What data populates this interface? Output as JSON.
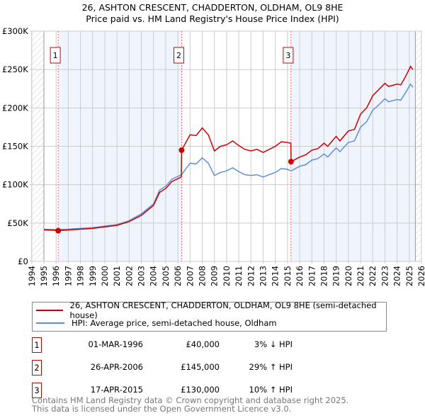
{
  "chart_data": {
    "type": "line",
    "title": "26, ASHTON CRESCENT, CHADDERTON, OLDHAM, OL9 8HE",
    "subtitle": "Price paid vs. HM Land Registry's House Price Index (HPI)",
    "xlim": [
      1994,
      2026
    ],
    "ylim": [
      0,
      300000
    ],
    "x_ticks": [
      "1994",
      "1995",
      "1996",
      "1997",
      "1998",
      "1999",
      "2000",
      "2001",
      "2002",
      "2003",
      "2004",
      "2005",
      "2006",
      "2007",
      "2008",
      "2009",
      "2010",
      "2011",
      "2012",
      "2013",
      "2014",
      "2015",
      "2016",
      "2017",
      "2018",
      "2019",
      "2020",
      "2021",
      "2022",
      "2023",
      "2024",
      "2025",
      "2026"
    ],
    "y_ticks": [
      {
        "v": 0,
        "label": "£0"
      },
      {
        "v": 50000,
        "label": "£50K"
      },
      {
        "v": 100000,
        "label": "£100K"
      },
      {
        "v": 150000,
        "label": "£150K"
      },
      {
        "v": 200000,
        "label": "£200K"
      },
      {
        "v": 250000,
        "label": "£250K"
      },
      {
        "v": 300000,
        "label": "£300K"
      }
    ],
    "grid": true,
    "series": [
      {
        "name": "26, ASHTON CRESCENT, CHADDERTON, OLDHAM, OL9 8HE (semi-detached house)",
        "color": "#cc0000",
        "x": [
          1995,
          1996,
          1996.17,
          1997,
          1998,
          1999,
          2000,
          2001,
          2002,
          2003,
          2004,
          2004.5,
          2005,
          2005.5,
          2006.28,
          2006.31,
          2007,
          2007.5,
          2008,
          2008.5,
          2009,
          2009.5,
          2010,
          2010.5,
          2011,
          2011.5,
          2012,
          2012.5,
          2013,
          2013.5,
          2014,
          2014.5,
          2015,
          2015.27,
          2015.3,
          2016,
          2016.5,
          2017,
          2017.5,
          2018,
          2018.3,
          2019,
          2019.3,
          2020,
          2020.5,
          2021,
          2021.5,
          2022,
          2022.5,
          2023,
          2023.3,
          2024,
          2024.3,
          2024.7,
          2025.1,
          2025.3
        ],
        "y": [
          41000,
          40500,
          40000,
          41000,
          42000,
          43000,
          45000,
          47000,
          52000,
          60000,
          73000,
          90000,
          95000,
          104000,
          110000,
          145000,
          165000,
          164000,
          174000,
          165000,
          144000,
          150000,
          152000,
          157000,
          151000,
          146000,
          144000,
          146000,
          142000,
          146000,
          150000,
          156000,
          155000,
          154000,
          130000,
          136000,
          139000,
          145000,
          147000,
          154000,
          150000,
          163000,
          157000,
          170000,
          172000,
          192000,
          200000,
          216000,
          224000,
          232000,
          228000,
          231000,
          230000,
          241000,
          254000,
          250000
        ]
      },
      {
        "name": "HPI: Average price, semi-detached house, Oldham",
        "color": "#5b8fd6",
        "x": [
          1995,
          1996,
          1997,
          1998,
          1999,
          2000,
          2001,
          2002,
          2003,
          2004,
          2004.5,
          2005,
          2005.5,
          2006.3,
          2007,
          2007.5,
          2008,
          2008.5,
          2009,
          2009.5,
          2010,
          2010.5,
          2011,
          2011.5,
          2012,
          2012.5,
          2013,
          2013.5,
          2014,
          2014.5,
          2015,
          2015.3,
          2016,
          2016.5,
          2017,
          2017.5,
          2018,
          2018.3,
          2019,
          2019.3,
          2020,
          2020.5,
          2021,
          2021.5,
          2022,
          2022.5,
          2023,
          2023.3,
          2024,
          2024.3,
          2024.7,
          2025.1,
          2025.3
        ],
        "y": [
          42000,
          41500,
          42000,
          43000,
          44000,
          46000,
          48000,
          53000,
          62000,
          75000,
          93000,
          98000,
          107000,
          113000,
          128000,
          127000,
          135000,
          128000,
          112000,
          116000,
          118000,
          122000,
          117000,
          113000,
          112000,
          113000,
          110000,
          113000,
          116000,
          121000,
          120000,
          118000,
          124000,
          126000,
          132000,
          134000,
          140000,
          136000,
          148000,
          143000,
          155000,
          157000,
          175000,
          182000,
          197000,
          204000,
          212000,
          208000,
          211000,
          210000,
          220000,
          231000,
          227000
        ]
      }
    ],
    "sales": [
      {
        "n": "1",
        "x": 1996.17,
        "y": 40000,
        "date": "01-MAR-1996",
        "price": "£40,000",
        "hpi": "3% ↓ HPI"
      },
      {
        "n": "2",
        "x": 2006.31,
        "y": 145000,
        "date": "26-APR-2006",
        "price": "£145,000",
        "hpi": "29% ↑ HPI"
      },
      {
        "n": "3",
        "x": 2015.29,
        "y": 130000,
        "date": "17-APR-2015",
        "price": "£130,000",
        "hpi": "10% ↑ HPI"
      }
    ],
    "data_end": 2025.5,
    "legend_position": "below"
  },
  "footer": [
    "Contains HM Land Registry data © Crown copyright and database right 2025.",
    "This data is licensed under the Open Government Licence v3.0."
  ]
}
